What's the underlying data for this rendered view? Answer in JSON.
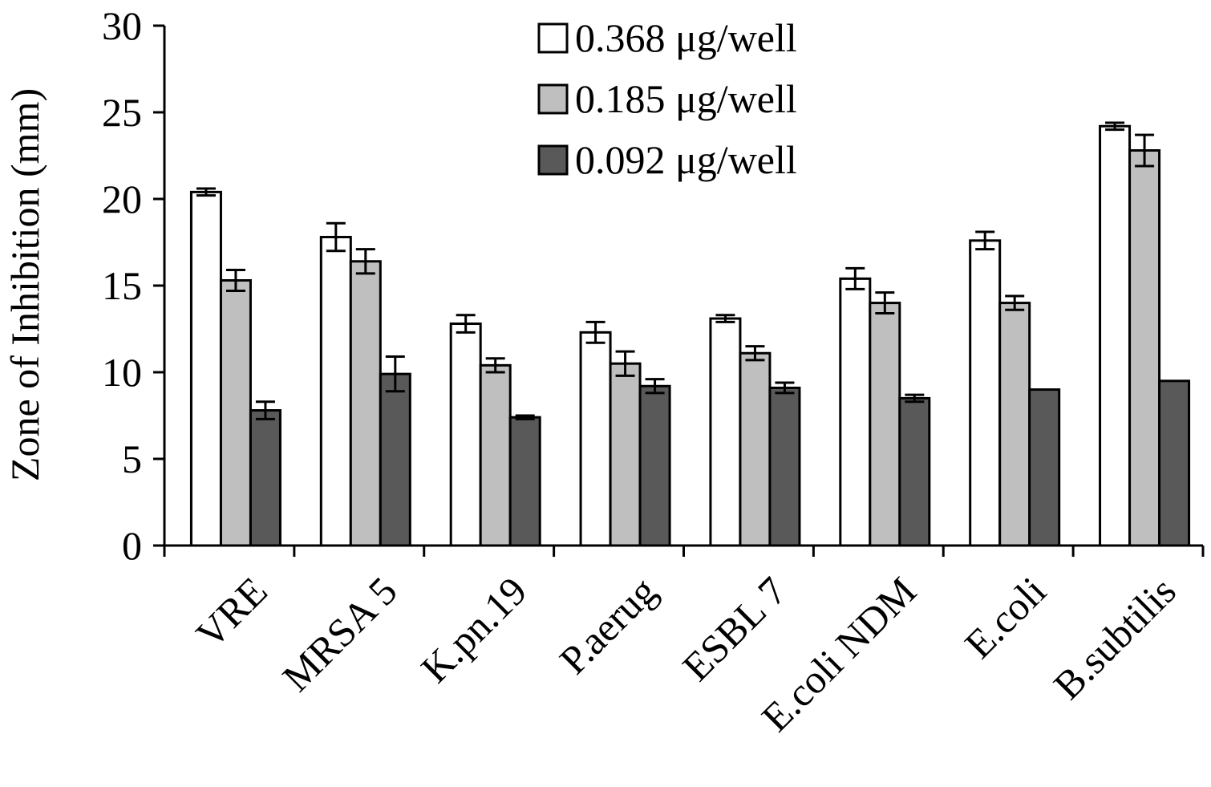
{
  "chart_data": {
    "type": "bar",
    "title": "",
    "xlabel": "",
    "ylabel": "Zone of Inhibition (mm)",
    "ylim": [
      0,
      30
    ],
    "yticks": [
      0,
      5,
      10,
      15,
      20,
      25,
      30
    ],
    "grid": false,
    "legend_position": "top-center",
    "categories": [
      "VRE",
      "MRSA 5",
      "K.pn.19",
      "P.aerug",
      "ESBL 7",
      "E.coli NDM",
      "E.coli",
      "B.subtilis"
    ],
    "series": [
      {
        "name": "0.368 μg/well",
        "color": "#ffffff",
        "values": [
          20.4,
          17.8,
          12.8,
          12.3,
          13.1,
          15.4,
          17.6,
          24.2
        ],
        "errors": [
          0.2,
          0.8,
          0.5,
          0.6,
          0.2,
          0.6,
          0.5,
          0.2
        ]
      },
      {
        "name": "0.185 μg/well",
        "color": "#bfbfbf",
        "values": [
          15.3,
          16.4,
          10.4,
          10.5,
          11.1,
          14.0,
          14.0,
          22.8
        ],
        "errors": [
          0.6,
          0.7,
          0.4,
          0.7,
          0.4,
          0.6,
          0.4,
          0.9
        ]
      },
      {
        "name": "0.092 μg/well",
        "color": "#595959",
        "values": [
          7.8,
          9.9,
          7.4,
          9.2,
          9.1,
          8.5,
          9.0,
          9.5
        ],
        "errors": [
          0.5,
          1.0,
          0.1,
          0.4,
          0.3,
          0.2,
          0.0,
          0.0
        ]
      }
    ]
  }
}
